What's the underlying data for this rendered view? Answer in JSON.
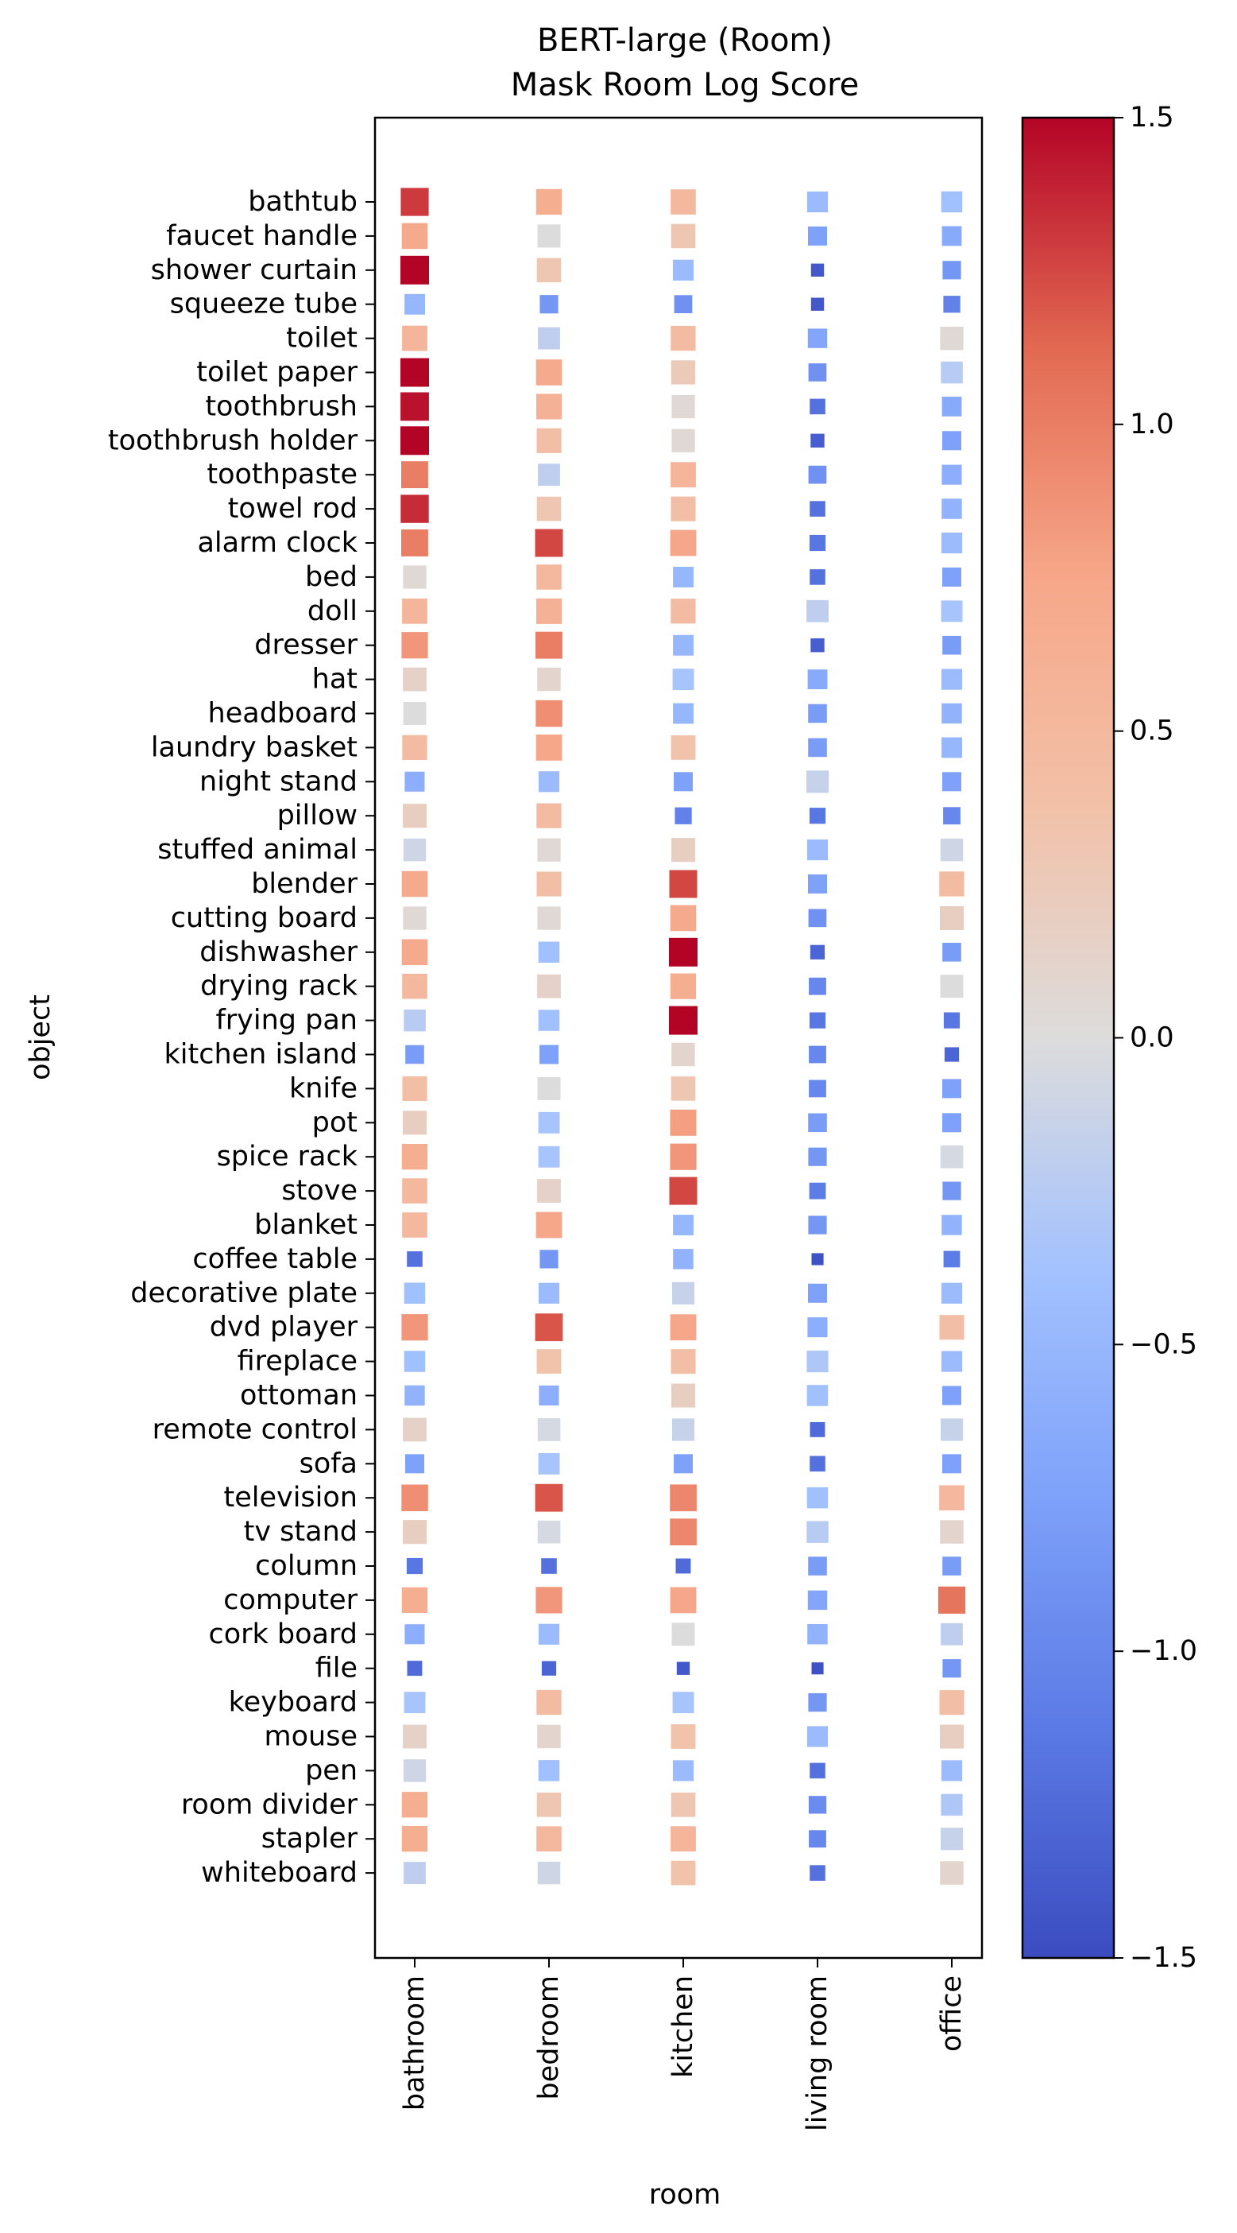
{
  "chart_data": {
    "type": "heatmap",
    "title": [
      "BERT-large (Room)",
      "Mask Room Log Score"
    ],
    "xlabel": "room",
    "ylabel": "object",
    "x_categories": [
      "bathroom",
      "bedroom",
      "kitchen",
      "living room",
      "office"
    ],
    "y_categories": [
      "bathtub",
      "faucet handle",
      "shower curtain",
      "squeeze tube",
      "toilet",
      "toilet paper",
      "toothbrush",
      "toothbrush holder",
      "toothpaste",
      "towel rod",
      "alarm clock",
      "bed",
      "doll",
      "dresser",
      "hat",
      "headboard",
      "laundry basket",
      "night stand",
      "pillow",
      "stuffed animal",
      "blender",
      "cutting board",
      "dishwasher",
      "drying rack",
      "frying pan",
      "kitchen island",
      "knife",
      "pot",
      "spice rack",
      "stove",
      "blanket",
      "coffee table",
      "decorative plate",
      "dvd player",
      "fireplace",
      "ottoman",
      "remote control",
      "sofa",
      "television",
      "tv stand",
      "column",
      "computer",
      "cork board",
      "file",
      "keyboard",
      "mouse",
      "pen",
      "room divider",
      "stapler",
      "whiteboard"
    ],
    "values": [
      [
        1.3,
        0.65,
        0.5,
        -0.45,
        -0.4
      ],
      [
        0.7,
        0.0,
        0.3,
        -0.75,
        -0.65
      ],
      [
        1.5,
        0.3,
        -0.45,
        -1.4,
        -0.85
      ],
      [
        -0.5,
        -0.85,
        -0.9,
        -1.4,
        -1.05
      ],
      [
        0.55,
        -0.2,
        0.45,
        -0.7,
        0.05
      ],
      [
        1.5,
        0.7,
        0.25,
        -0.9,
        -0.25
      ],
      [
        1.45,
        0.6,
        0.05,
        -1.2,
        -0.65
      ],
      [
        1.5,
        0.4,
        0.05,
        -1.35,
        -0.75
      ],
      [
        1.0,
        -0.2,
        0.55,
        -0.9,
        -0.6
      ],
      [
        1.35,
        0.3,
        0.4,
        -1.2,
        -0.55
      ],
      [
        1.0,
        1.25,
        0.75,
        -1.15,
        -0.45
      ],
      [
        0.05,
        0.5,
        -0.5,
        -1.2,
        -0.75
      ],
      [
        0.55,
        0.6,
        0.45,
        -0.2,
        -0.35
      ],
      [
        0.85,
        1.0,
        -0.5,
        -1.35,
        -0.8
      ],
      [
        0.15,
        0.1,
        -0.35,
        -0.65,
        -0.45
      ],
      [
        0.0,
        0.9,
        -0.5,
        -0.8,
        -0.55
      ],
      [
        0.45,
        0.75,
        0.35,
        -0.8,
        -0.5
      ],
      [
        -0.6,
        -0.45,
        -0.75,
        -0.15,
        -0.75
      ],
      [
        0.2,
        0.45,
        -1.05,
        -1.15,
        -1.0
      ],
      [
        -0.1,
        0.05,
        0.2,
        -0.45,
        -0.1
      ],
      [
        0.7,
        0.4,
        1.25,
        -0.75,
        0.45
      ],
      [
        0.05,
        0.05,
        0.7,
        -0.9,
        0.2
      ],
      [
        0.7,
        -0.4,
        1.5,
        -1.3,
        -0.8
      ],
      [
        0.5,
        0.15,
        0.65,
        -1.0,
        0.0
      ],
      [
        -0.25,
        -0.4,
        1.5,
        -1.15,
        -1.15
      ],
      [
        -0.8,
        -0.75,
        0.1,
        -1.0,
        -1.3
      ],
      [
        0.4,
        0.0,
        0.3,
        -1.0,
        -0.75
      ],
      [
        0.2,
        -0.35,
        0.8,
        -0.8,
        -0.75
      ],
      [
        0.65,
        -0.35,
        0.85,
        -0.85,
        -0.05
      ],
      [
        0.5,
        0.15,
        1.25,
        -1.1,
        -0.85
      ],
      [
        0.5,
        0.75,
        -0.5,
        -0.85,
        -0.55
      ],
      [
        -1.2,
        -0.85,
        -0.55,
        -1.45,
        -1.1
      ],
      [
        -0.4,
        -0.45,
        -0.15,
        -0.75,
        -0.45
      ],
      [
        0.85,
        1.2,
        0.75,
        -0.6,
        0.4
      ],
      [
        -0.4,
        0.35,
        0.4,
        -0.3,
        -0.45
      ],
      [
        -0.55,
        -0.6,
        0.2,
        -0.4,
        -0.75
      ],
      [
        0.15,
        -0.05,
        -0.15,
        -1.25,
        -0.15
      ],
      [
        -0.75,
        -0.35,
        -0.75,
        -1.2,
        -0.75
      ],
      [
        0.9,
        1.2,
        0.95,
        -0.4,
        0.5
      ],
      [
        0.2,
        -0.05,
        0.95,
        -0.25,
        0.1
      ],
      [
        -1.15,
        -1.2,
        -1.25,
        -0.8,
        -0.8
      ],
      [
        0.65,
        0.85,
        0.75,
        -0.7,
        1.05
      ],
      [
        -0.6,
        -0.45,
        0.0,
        -0.55,
        -0.2
      ],
      [
        -1.25,
        -1.3,
        -1.4,
        -1.45,
        -0.85
      ],
      [
        -0.35,
        0.45,
        -0.35,
        -0.85,
        0.4
      ],
      [
        0.15,
        0.1,
        0.35,
        -0.45,
        0.2
      ],
      [
        -0.1,
        -0.4,
        -0.45,
        -1.2,
        -0.45
      ],
      [
        0.65,
        0.3,
        0.3,
        -0.95,
        -0.3
      ],
      [
        0.65,
        0.5,
        0.55,
        -1.0,
        -0.15
      ],
      [
        -0.2,
        -0.1,
        0.35,
        -1.2,
        0.1
      ]
    ],
    "colormap": "coolwarm",
    "colorbar": {
      "vmin": -1.5,
      "vmax": 1.5,
      "ticks": [
        1.5,
        1.0,
        0.5,
        0.0,
        -0.5,
        -1.0,
        -1.5
      ],
      "tick_labels": [
        "1.5",
        "1.0",
        "0.5",
        "0.0",
        "−0.5",
        "−1.0",
        "−1.5"
      ],
      "position": "right"
    },
    "marker_size_scales_with_value": true
  }
}
